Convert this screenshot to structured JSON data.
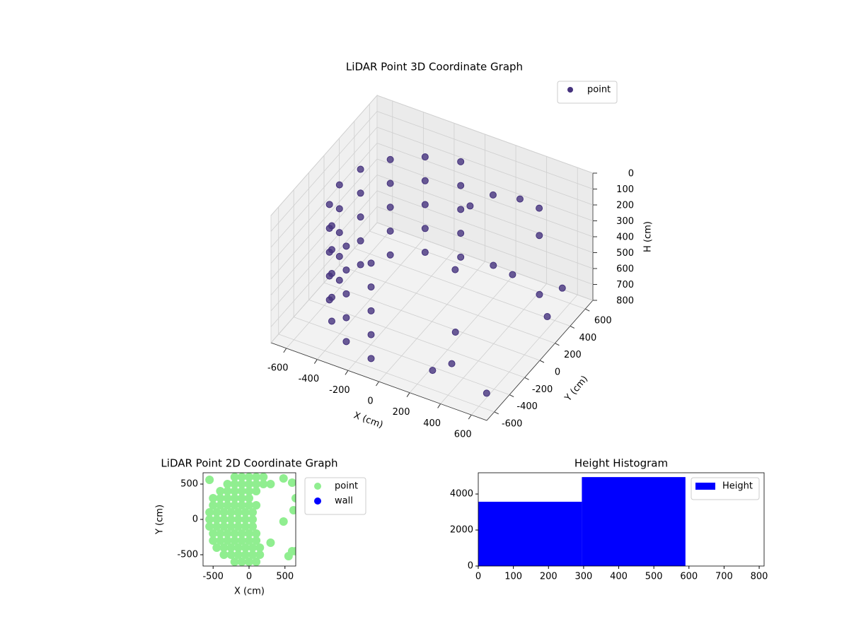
{
  "chart_data": [
    {
      "type": "scatter3d",
      "title": "LiDAR Point 3D Coordinate Graph",
      "xlabel": "X (cm)",
      "ylabel": "Y (cm)",
      "zlabel": "H (cm)",
      "xlim": [
        -700,
        700
      ],
      "ylim": [
        -700,
        700
      ],
      "zlim": [
        800,
        0
      ],
      "xticks": [
        -600,
        -400,
        -200,
        0,
        200,
        400,
        600
      ],
      "yticks": [
        -600,
        -400,
        -200,
        0,
        200,
        400,
        600
      ],
      "zticks": [
        0,
        100,
        200,
        300,
        400,
        500,
        600,
        700,
        800
      ],
      "grid": true,
      "legend": "upper right",
      "series": [
        {
          "name": "point",
          "color": "#46337e",
          "x": [
            -104,
            -300,
            -460,
            -564,
            -600,
            -564,
            -460,
            -300,
            -104,
            -104,
            -300,
            -460,
            -564,
            -600,
            -564,
            -460,
            -300,
            -104,
            -104,
            -300,
            -460,
            -564,
            -600,
            -564,
            -460,
            -300,
            -104,
            -104,
            -300,
            -460,
            -564,
            -600,
            -564,
            -460,
            -300,
            -104,
            -104,
            -300,
            -460,
            -564,
            -600,
            -564,
            -460,
            -300,
            -104,
            100,
            200,
            350,
            450,
            500,
            300,
            400,
            550,
            650,
            200,
            300,
            350,
            250,
            600,
            650
          ],
          "y": [
            591,
            520,
            386,
            205,
            0,
            -205,
            -386,
            -520,
            -591,
            591,
            520,
            386,
            205,
            0,
            -205,
            -386,
            -520,
            -591,
            591,
            520,
            386,
            205,
            0,
            -205,
            -386,
            -520,
            -591,
            591,
            520,
            386,
            205,
            0,
            -205,
            -386,
            -520,
            -591,
            591,
            520,
            386,
            205,
            0,
            -205,
            -386,
            -520,
            -591,
            300,
            400,
            450,
            500,
            400,
            200,
            250,
            300,
            200,
            -100,
            -300,
            -450,
            -500,
            500,
            -600
          ],
          "h": [
            150,
            150,
            150,
            150,
            150,
            150,
            150,
            150,
            150,
            300,
            300,
            300,
            300,
            300,
            300,
            300,
            300,
            300,
            450,
            450,
            450,
            450,
            450,
            450,
            450,
            450,
            450,
            600,
            600,
            600,
            600,
            600,
            600,
            600,
            600,
            600,
            750,
            750,
            750,
            750,
            750,
            750,
            750,
            750,
            750,
            200,
            150,
            150,
            200,
            300,
            450,
            500,
            600,
            650,
            350,
            600,
            700,
            750,
            650,
            700
          ]
        }
      ]
    },
    {
      "type": "scatter",
      "title": "LiDAR Point 2D Coordinate Graph",
      "xlabel": "X (cm)",
      "ylabel": "Y (cm)",
      "xlim": [
        -640,
        650
      ],
      "ylim": [
        -660,
        660
      ],
      "xticks": [
        -500,
        0,
        500
      ],
      "yticks": [
        -500,
        0,
        500
      ],
      "legend": "outside upper right",
      "series": [
        {
          "name": "point",
          "color": "#90ee90",
          "x": [
            -200,
            -100,
            0,
            100,
            200,
            -300,
            -200,
            -100,
            0,
            100,
            200,
            300,
            -400,
            -300,
            -200,
            -100,
            0,
            100,
            -500,
            -400,
            -300,
            -200,
            -100,
            0,
            -500,
            -400,
            -300,
            -200,
            -100,
            0,
            100,
            -550,
            -450,
            -350,
            -250,
            -150,
            -50,
            50,
            -550,
            -450,
            -350,
            -250,
            -150,
            -50,
            50,
            -550,
            -450,
            -350,
            -250,
            -150,
            -50,
            50,
            -500,
            -400,
            -300,
            -200,
            -100,
            0,
            100,
            -500,
            -400,
            -300,
            -200,
            -100,
            0,
            100,
            -450,
            -350,
            -250,
            -150,
            -50,
            50,
            150,
            -350,
            -250,
            -150,
            -50,
            50,
            150,
            -200,
            -100,
            0,
            100,
            -550,
            480,
            600,
            650,
            620,
            480,
            300,
            600,
            550,
            650
          ],
          "y": [
            600,
            600,
            600,
            600,
            600,
            500,
            500,
            500,
            500,
            500,
            500,
            500,
            400,
            400,
            400,
            400,
            400,
            400,
            300,
            300,
            300,
            300,
            300,
            300,
            200,
            200,
            200,
            200,
            200,
            200,
            200,
            100,
            100,
            100,
            100,
            100,
            100,
            100,
            0,
            0,
            0,
            0,
            0,
            0,
            0,
            -100,
            -100,
            -100,
            -100,
            -100,
            -100,
            -100,
            -200,
            -200,
            -200,
            -200,
            -200,
            -200,
            -200,
            -300,
            -300,
            -300,
            -300,
            -300,
            -300,
            -300,
            -400,
            -400,
            -400,
            -400,
            -400,
            -400,
            -400,
            -500,
            -500,
            -500,
            -500,
            -500,
            -500,
            -600,
            -600,
            -600,
            -600,
            560,
            580,
            520,
            300,
            130,
            -30,
            -330,
            -450,
            -520,
            -450
          ]
        },
        {
          "name": "wall",
          "color": "#0000ff",
          "x": [],
          "y": []
        }
      ]
    },
    {
      "type": "histogram",
      "title": "Height Histogram",
      "name": "Height",
      "color": "#0000ff",
      "bins": [
        0,
        295,
        590
      ],
      "counts": [
        3570,
        4940
      ],
      "xlim": [
        0,
        814
      ],
      "ylim": [
        0,
        5180
      ],
      "xticks": [
        0,
        100,
        200,
        300,
        400,
        500,
        600,
        700,
        800
      ],
      "yticks": [
        0,
        2000,
        4000
      ],
      "legend": "upper right"
    }
  ]
}
